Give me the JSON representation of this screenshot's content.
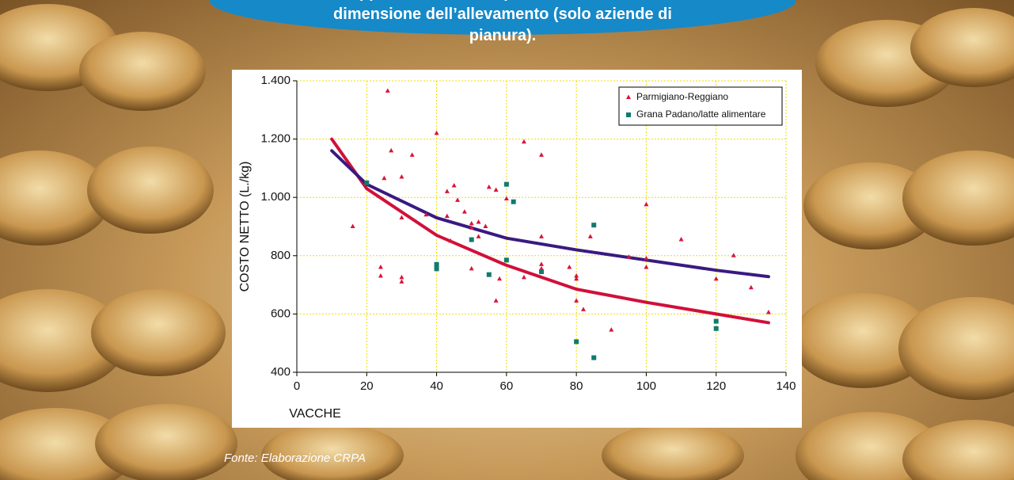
{
  "chart_data": {
    "type": "scatter",
    "title": "Rapporto tra costo di produzione del latte e dimensione dell’allevamento (solo aziende di pianura).",
    "x_label": "VACCHE",
    "y_label": "COSTO NETTO (L./kg)",
    "source": "Fonte: Elaborazione CRPA",
    "xlim": [
      0,
      140
    ],
    "ylim": [
      400,
      1400
    ],
    "xticks": [
      0,
      20,
      40,
      60,
      80,
      100,
      120,
      140
    ],
    "yticks": [
      400,
      600,
      800,
      {
        "value": 1000,
        "label": "1.000"
      },
      {
        "value": 1200,
        "label": "1.200"
      },
      {
        "value": 1400,
        "label": "1.400"
      }
    ],
    "grid": true,
    "legend": "top-right",
    "series": [
      {
        "name": "Parmigiano-Reggiano",
        "color": "#d8143a",
        "marker": "triangle",
        "x": [
          16,
          26,
          27,
          25,
          30,
          33,
          24,
          24,
          30,
          30,
          30,
          37,
          40,
          43,
          45,
          46,
          43,
          44,
          48,
          50,
          50,
          52,
          54,
          52,
          50,
          55,
          57,
          60,
          57,
          58,
          65,
          70,
          70,
          65,
          70,
          70,
          78,
          80,
          80,
          80,
          82,
          84,
          90,
          100,
          95,
          100,
          100,
          110,
          120,
          125,
          130,
          135
        ],
        "values": [
          900,
          1365,
          1160,
          1065,
          1070,
          1145,
          760,
          730,
          725,
          710,
          930,
          940,
          1220,
          1020,
          1040,
          990,
          935,
          850,
          950,
          910,
          895,
          915,
          900,
          865,
          755,
          1035,
          1025,
          995,
          645,
          720,
          1190,
          1145,
          865,
          725,
          770,
          755,
          760,
          730,
          720,
          645,
          615,
          865,
          545,
          975,
          795,
          790,
          760,
          855,
          720,
          800,
          690,
          605
        ]
      },
      {
        "name": "Grana Padano/latte alimentare",
        "color": "#127a6e",
        "marker": "square",
        "x": [
          20,
          40,
          40,
          50,
          55,
          60,
          62,
          60,
          70,
          80,
          85,
          85,
          120,
          120
        ],
        "values": [
          1050,
          770,
          755,
          855,
          735,
          1045,
          985,
          785,
          745,
          505,
          905,
          450,
          575,
          550
        ]
      }
    ],
    "trend_lines": [
      {
        "color": "#d0103a",
        "x": [
          10,
          20,
          40,
          60,
          80,
          100,
          120,
          135
        ],
        "values": [
          1200,
          1030,
          870,
          767,
          685,
          640,
          600,
          570
        ]
      },
      {
        "color": "#3a1a80",
        "x": [
          10,
          20,
          40,
          60,
          80,
          100,
          120,
          135
        ],
        "values": [
          1160,
          1045,
          930,
          860,
          820,
          785,
          750,
          728
        ]
      }
    ]
  }
}
